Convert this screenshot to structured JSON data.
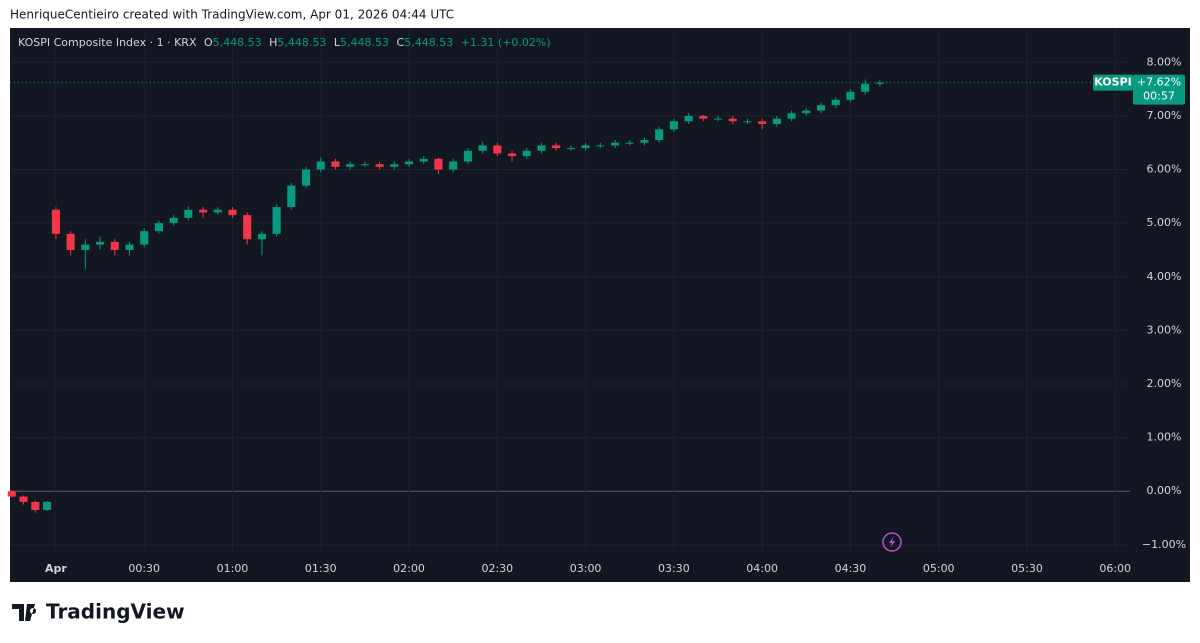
{
  "header": "HenriqueCentieiro created with TradingView.com, Apr 01, 2026 04:44 UTC",
  "footer": "TradingView",
  "chart_data": {
    "type": "candlestick",
    "legend": {
      "symbol": "KOSPI Composite Index · 1 · KRX",
      "o_label": "O",
      "o": "5,448.53",
      "h_label": "H",
      "h": "5,448.53",
      "l_label": "L",
      "l": "5,448.53",
      "c_label": "C",
      "c": "5,448.53",
      "change": "+1.31 (+0.02%)"
    },
    "price_label": {
      "name": "KOSPI",
      "value": "+7.62%",
      "countdown": "00:57"
    },
    "up_color": "#089981",
    "down_color": "#f23645",
    "x": [
      -15,
      -11,
      -7,
      -3,
      0,
      5,
      10,
      15,
      20,
      25,
      30,
      35,
      40,
      45,
      50,
      55,
      60,
      65,
      70,
      75,
      80,
      85,
      90,
      95,
      100,
      105,
      110,
      115,
      120,
      125,
      130,
      135,
      140,
      145,
      150,
      155,
      160,
      165,
      170,
      175,
      180,
      185,
      190,
      195,
      200,
      205,
      210,
      215,
      220,
      225,
      230,
      235,
      240,
      245,
      250,
      255,
      260,
      265,
      270,
      275,
      280
    ],
    "open": [
      0,
      -0.1,
      -0.2,
      -0.35,
      5.25,
      4.8,
      4.5,
      4.6,
      4.65,
      4.5,
      4.6,
      4.85,
      5.0,
      5.1,
      5.25,
      5.2,
      5.25,
      5.15,
      4.7,
      4.8,
      5.3,
      5.7,
      6.0,
      6.15,
      6.05,
      6.1,
      6.1,
      6.05,
      6.1,
      6.15,
      6.2,
      6.0,
      6.15,
      6.35,
      6.45,
      6.3,
      6.25,
      6.35,
      6.45,
      6.4,
      6.4,
      6.45,
      6.45,
      6.5,
      6.5,
      6.55,
      6.75,
      6.9,
      7.0,
      6.95,
      6.95,
      6.9,
      6.9,
      6.85,
      6.95,
      7.05,
      7.1,
      7.2,
      7.3,
      7.45,
      7.6
    ],
    "high": [
      0.02,
      -0.08,
      -0.18,
      -0.18,
      5.3,
      4.85,
      4.7,
      4.75,
      4.7,
      4.65,
      4.9,
      5.05,
      5.15,
      5.32,
      5.3,
      5.3,
      5.3,
      5.2,
      4.85,
      5.35,
      5.75,
      6.05,
      6.22,
      6.2,
      6.15,
      6.15,
      6.15,
      6.15,
      6.2,
      6.25,
      6.22,
      6.2,
      6.4,
      6.52,
      6.5,
      6.35,
      6.4,
      6.5,
      6.5,
      6.45,
      6.5,
      6.5,
      6.55,
      6.55,
      6.6,
      6.8,
      6.95,
      7.05,
      7.02,
      7.0,
      7.0,
      6.95,
      6.95,
      7.0,
      7.1,
      7.15,
      7.25,
      7.35,
      7.5,
      7.68,
      7.66
    ],
    "low": [
      -0.12,
      -0.25,
      -0.4,
      -0.37,
      4.7,
      4.4,
      4.15,
      4.5,
      4.4,
      4.4,
      4.55,
      4.8,
      4.95,
      5.05,
      5.1,
      5.15,
      5.1,
      4.6,
      4.4,
      4.75,
      5.25,
      5.65,
      5.95,
      6.0,
      6.0,
      6.05,
      6.0,
      6.0,
      6.05,
      6.1,
      5.92,
      5.95,
      6.1,
      6.3,
      6.25,
      6.15,
      6.2,
      6.3,
      6.35,
      6.35,
      6.35,
      6.4,
      6.4,
      6.45,
      6.45,
      6.5,
      6.7,
      6.85,
      6.9,
      6.9,
      6.85,
      6.85,
      6.75,
      6.8,
      6.9,
      7.0,
      7.05,
      7.15,
      7.25,
      7.4,
      7.55
    ],
    "close": [
      -0.1,
      -0.2,
      -0.35,
      -0.2,
      4.8,
      4.5,
      4.6,
      4.65,
      4.5,
      4.6,
      4.85,
      5.0,
      5.1,
      5.25,
      5.2,
      5.25,
      5.15,
      4.7,
      4.8,
      5.3,
      5.7,
      6.0,
      6.15,
      6.05,
      6.1,
      6.1,
      6.05,
      6.1,
      6.15,
      6.2,
      6.0,
      6.15,
      6.35,
      6.45,
      6.3,
      6.25,
      6.35,
      6.45,
      6.4,
      6.4,
      6.45,
      6.45,
      6.5,
      6.5,
      6.55,
      6.75,
      6.9,
      7.0,
      6.95,
      6.95,
      6.9,
      6.9,
      6.85,
      6.95,
      7.05,
      7.1,
      7.2,
      7.3,
      7.45,
      7.6,
      7.62
    ],
    "xlim": [
      -15.6,
      365
    ],
    "xticks": [
      {
        "value": 0,
        "label": "Apr"
      },
      {
        "value": 30,
        "label": "00:30"
      },
      {
        "value": 60,
        "label": "01:00"
      },
      {
        "value": 90,
        "label": "01:30"
      },
      {
        "value": 120,
        "label": "02:00"
      },
      {
        "value": 150,
        "label": "02:30"
      },
      {
        "value": 180,
        "label": "03:00"
      },
      {
        "value": 210,
        "label": "03:30"
      },
      {
        "value": 240,
        "label": "04:00"
      },
      {
        "value": 270,
        "label": "04:30"
      },
      {
        "value": 300,
        "label": "05:00"
      },
      {
        "value": 330,
        "label": "05:30"
      },
      {
        "value": 360,
        "label": "06:00"
      }
    ],
    "ylim": [
      -1.19,
      8.64
    ],
    "yticks": [
      {
        "value": -1,
        "label": "−1.00%"
      },
      {
        "value": 0,
        "label": "0.00%"
      },
      {
        "value": 1,
        "label": "1.00%"
      },
      {
        "value": 2,
        "label": "2.00%"
      },
      {
        "value": 3,
        "label": "3.00%"
      },
      {
        "value": 4,
        "label": "4.00%"
      },
      {
        "value": 5,
        "label": "5.00%"
      },
      {
        "value": 6,
        "label": "6.00%"
      },
      {
        "value": 7,
        "label": "7.00%"
      },
      {
        "value": 8,
        "label": "8.00%"
      }
    ],
    "grid": true
  }
}
